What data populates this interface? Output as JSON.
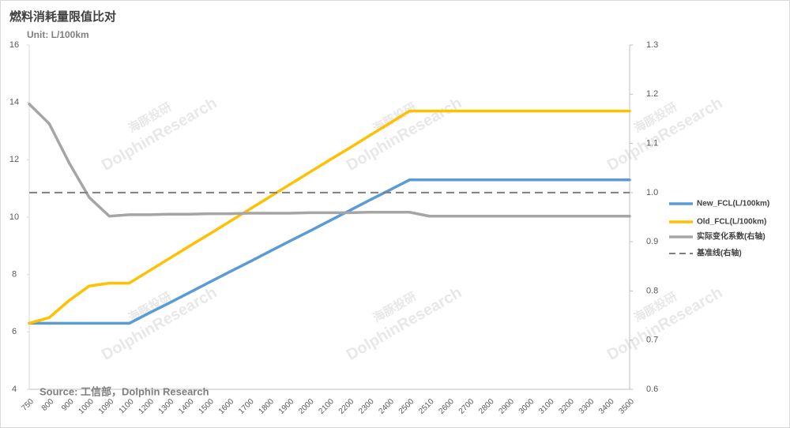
{
  "chart_data": {
    "type": "line",
    "title": "燃料消耗量限值比对",
    "subtitle": "Unit:  L/100km",
    "source": "Source: 工信部，Dolphin Research",
    "watermark": [
      "海豚投研",
      "DolphinResearch"
    ],
    "categories": [
      "750",
      "800",
      "900",
      "1000",
      "1090",
      "1100",
      "1200",
      "1300",
      "1400",
      "1500",
      "1600",
      "1700",
      "1800",
      "1900",
      "2000",
      "2100",
      "2200",
      "2300",
      "2400",
      "2500",
      "2510",
      "2600",
      "2700",
      "2800",
      "2900",
      "3000",
      "3100",
      "3200",
      "3300",
      "3400",
      "3500"
    ],
    "ylim": [
      4,
      16
    ],
    "yticks": [
      4,
      6,
      8,
      10,
      12,
      14,
      16
    ],
    "y2lim": [
      0.6,
      1.3
    ],
    "y2ticks": [
      0.6,
      0.7,
      0.8,
      0.9,
      {
        "value": 1,
        "label": "1.0"
      },
      1.1,
      1.2,
      1.3
    ],
    "legend": "right",
    "series": [
      {
        "name": "New_FCL(L/100km)",
        "color": "#5b9bd5",
        "values": [
          6.3,
          6.3,
          6.3,
          6.3,
          6.3,
          6.3,
          6.66,
          7.01,
          7.37,
          7.73,
          8.09,
          8.44,
          8.8,
          9.16,
          9.51,
          9.87,
          10.23,
          10.59,
          10.94,
          11.3,
          11.3,
          11.3,
          11.3,
          11.3,
          11.3,
          11.3,
          11.3,
          11.3,
          11.3,
          11.3,
          11.3
        ]
      },
      {
        "name": "Old_FCL(L/100km)",
        "color": "#ffc000",
        "values": [
          6.3,
          6.5,
          7.1,
          7.6,
          7.7,
          7.7,
          8.13,
          8.56,
          8.99,
          9.41,
          9.84,
          10.27,
          10.7,
          11.13,
          11.56,
          11.99,
          12.41,
          12.84,
          13.27,
          13.7,
          13.7,
          13.7,
          13.7,
          13.7,
          13.7,
          13.7,
          13.7,
          13.7,
          13.7,
          13.7,
          13.7
        ]
      },
      {
        "name": "实际变化系数(右轴)",
        "color": "#a5a5a5",
        "axis": "y2",
        "values": [
          1.18,
          1.14,
          1.06,
          0.99,
          0.952,
          0.955,
          0.955,
          0.956,
          0.956,
          0.957,
          0.957,
          0.958,
          0.958,
          0.958,
          0.959,
          0.959,
          0.959,
          0.96,
          0.96,
          0.96,
          0.952,
          0.952,
          0.952,
          0.952,
          0.952,
          0.952,
          0.952,
          0.952,
          0.952,
          0.952,
          0.952
        ]
      },
      {
        "name": "基准线(右轴)",
        "color": "#7f7f7f",
        "axis": "y2",
        "dash": true,
        "values": [
          1,
          1,
          1,
          1,
          1,
          1,
          1,
          1,
          1,
          1,
          1,
          1,
          1,
          1,
          1,
          1,
          1,
          1,
          1,
          1,
          1,
          1,
          1,
          1,
          1,
          1,
          1,
          1,
          1,
          1,
          1
        ]
      }
    ]
  }
}
